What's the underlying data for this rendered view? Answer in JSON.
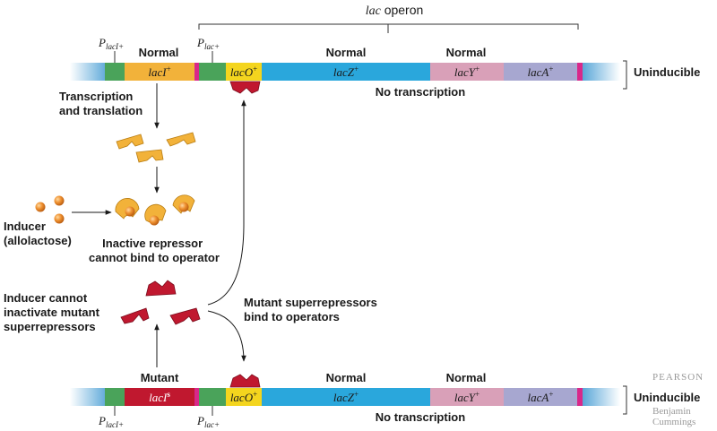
{
  "operon_label": {
    "italic": "lac",
    "rest": " operon"
  },
  "top": {
    "promoter_i": {
      "base": "P",
      "sub": "lacI+"
    },
    "promoter_lac": {
      "base": "P",
      "sub": "lac+"
    },
    "normal_labels": [
      "Normal",
      "Normal",
      "Normal"
    ],
    "genes": {
      "lacI": {
        "name": "lacI",
        "sup": "+"
      },
      "lacO": {
        "name": "lacO",
        "sup": "+"
      },
      "lacZ": {
        "name": "lacZ",
        "sup": "+"
      },
      "lacY": {
        "name": "lacY",
        "sup": "+"
      },
      "lacA": {
        "name": "lacA",
        "sup": "+"
      }
    },
    "status": "No transcription",
    "side_label": "Uninducible"
  },
  "steps": {
    "transcription_l1": "Transcription",
    "transcription_l2": "and translation",
    "inducer_l1": "Inducer",
    "inducer_l2": "(allolactose)",
    "inactive_l1": "Inactive repressor",
    "inactive_l2": "cannot bind to operator",
    "cannot_l1": "Inducer cannot",
    "cannot_l2": "inactivate mutant",
    "cannot_l3": "superrepressors",
    "super_l1": "Mutant superrepressors",
    "super_l2": "bind to operators"
  },
  "bottom": {
    "mutant_label": "Mutant",
    "normal_labels": [
      "Normal",
      "Normal"
    ],
    "promoter_i": {
      "base": "P",
      "sub": "lacI+"
    },
    "promoter_lac": {
      "base": "P",
      "sub": "lac+"
    },
    "genes": {
      "lacI": {
        "name": "lacI",
        "sup": "s"
      },
      "lacO": {
        "name": "lacO",
        "sup": "+"
      },
      "lacZ": {
        "name": "lacZ",
        "sup": "+"
      },
      "lacY": {
        "name": "lacY",
        "sup": "+"
      },
      "lacA": {
        "name": "lacA",
        "sup": "+"
      }
    },
    "status": "No transcription",
    "side_label": "Uninducible"
  },
  "watermark": [
    "PEARSON",
    "Benjamin",
    "Cummings"
  ],
  "colors": {
    "dna_blue": "#5aa7d8",
    "promoter_green": "#4aa35a",
    "laci_orange": "#f2b23a",
    "mutant_red": "#c0182f",
    "operator_yellow": "#f4d51e",
    "lacz_cyan": "#2aa7dc",
    "lacy_pink": "#d9a0b8",
    "laca_lavender": "#a7a7d0",
    "end_magenta": "#d8288a",
    "inducer_orange": "#e8852a"
  }
}
